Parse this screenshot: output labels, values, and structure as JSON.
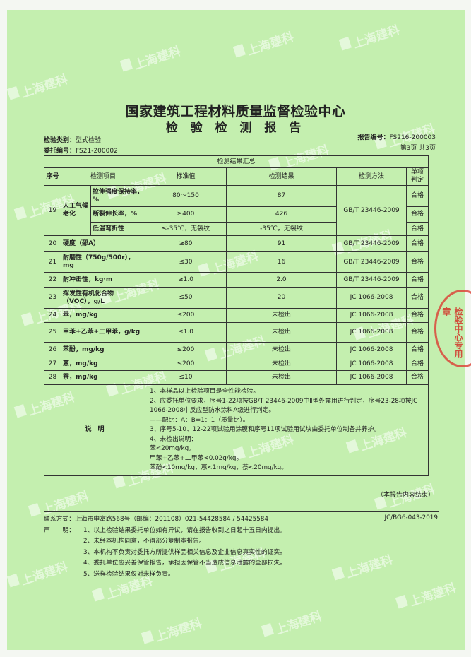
{
  "header": {
    "title": "国家建筑工程材料质量监督检验中心",
    "subtitle": "检 验 检 测 报 告",
    "category_label": "检验类别：",
    "category": "型式检验",
    "commission_label": "委托编号：",
    "commission": "FS21-200002",
    "report_label": "报告编号：",
    "report": "FS216-200003",
    "page": "第3页 共3页"
  },
  "watermark": "上海建科",
  "stamp": "检验中心专用章",
  "table": {
    "caption": "检测结果汇总",
    "columns": [
      "序号",
      "检测项目",
      "标准值",
      "检测结果",
      "检测方法",
      "单项判定"
    ],
    "group19": {
      "no": "19",
      "name": "人工气候老化",
      "method": "GB/T 23446-2009",
      "items": [
        {
          "item": "拉伸强度保持率，%",
          "std": "80～150",
          "result": "87",
          "verdict": "合格"
        },
        {
          "item": "断裂伸长率，%",
          "std": "≥400",
          "result": "426",
          "verdict": "合格"
        },
        {
          "item": "低温弯折性",
          "std": "≤-35℃，无裂纹",
          "result": "-35℃，无裂纹",
          "verdict": "合格"
        }
      ]
    },
    "rows": [
      {
        "no": "20",
        "item": "硬度（邵A）",
        "std": "≥80",
        "result": "91",
        "method": "GB/T 23446-2009",
        "verdict": "合格"
      },
      {
        "no": "21",
        "item": "耐磨性（750g/500r），mg",
        "std": "≤30",
        "result": "16",
        "method": "GB/T 23446-2009",
        "verdict": "合格"
      },
      {
        "no": "22",
        "item": "耐冲击性，kg·m",
        "std": "≥1.0",
        "result": "2.0",
        "method": "GB/T 23446-2009",
        "verdict": "合格"
      },
      {
        "no": "23",
        "item": "挥发性有机化合物（VOC），g/L",
        "std": "≤50",
        "result": "20",
        "method": "JC 1066-2008",
        "verdict": "合格"
      },
      {
        "no": "24",
        "item": "苯，mg/kg",
        "std": "≤200",
        "result": "未检出",
        "method": "JC 1066-2008",
        "verdict": "合格"
      },
      {
        "no": "25",
        "item": "甲苯+乙苯+二甲苯，g/kg",
        "std": "≤1.0",
        "result": "未检出",
        "method": "JC 1066-2008",
        "verdict": "合格"
      },
      {
        "no": "26",
        "item": "苯酚，mg/kg",
        "std": "≤200",
        "result": "未检出",
        "method": "JC 1066-2008",
        "verdict": "合格"
      },
      {
        "no": "27",
        "item": "蒽，mg/kg",
        "std": "≤200",
        "result": "未检出",
        "method": "JC 1066-2008",
        "verdict": "合格"
      },
      {
        "no": "28",
        "item": "萘，mg/kg",
        "std": "≤10",
        "result": "未检出",
        "method": "JC 1066-2008",
        "verdict": "合格"
      }
    ],
    "notes_label": "说　明",
    "notes": [
      "1、本样品以上检验项目是全性能检验。",
      "2、应委托单位要求，序号1-22项按GB/T 23446-2009中Ⅱ型外露用进行判定，序号23-28项按JC 1066-2008中反应型防水涂料A级进行判定。",
      "——配比：A：B=1：1（质量比）。",
      "3、序号5-10、12-22项试验用涂膜和序号11项试验用试块由委托单位制备并养护。",
      "4、未检出说明：",
      "苯<20mg/kg。",
      "甲苯+乙苯+二甲苯<0.02g/kg。",
      "苯酚<10mg/kg，蒽<1mg/kg，萘<20mg/kg。"
    ]
  },
  "end_note": "（本报告内容结束）",
  "footer": {
    "contact": "联系方式：上海市申富路568号（邮编：201108）021-54428584 / 54425584",
    "code": "JC/BG6-043-2019",
    "declaration_label": "声　　明：",
    "declarations": [
      "1、以上检验结果委托单位如有异议，请在报告收到之日起十五日内提出。",
      "2、未经本机构同意，不得部分复制本报告。",
      "3、本机构不负责对委托方所提供样品相关信息及企业信息真实性的证实。",
      "4、委托单位应妥善保管报告，承担因保管不当造成信息泄露的全部损失。",
      "5、送样检验结果仅对来样负责。"
    ]
  }
}
